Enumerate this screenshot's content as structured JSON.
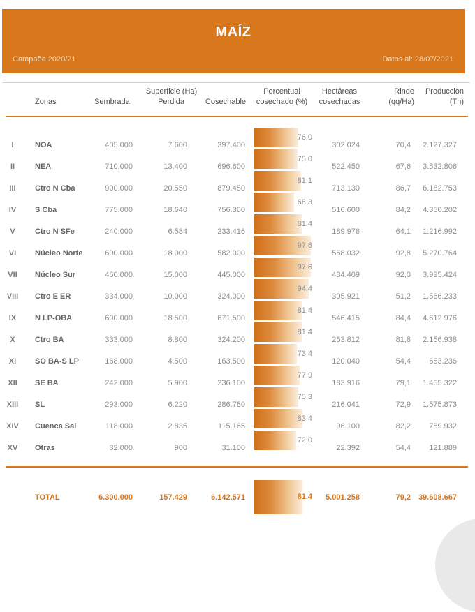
{
  "header": {
    "title": "MAÍZ",
    "campaign": "Campaña 2020/21",
    "data_as_of": "Datos al: 28/07/2021"
  },
  "columns": {
    "zonas": "Zonas",
    "sembrada": "Sembrada",
    "superficie_group": "Superficie (Ha)",
    "perdida": "Perdida",
    "cosechable": "Cosechable",
    "porcentual_l1": "Porcentual",
    "porcentual_l2": "cosechado (%)",
    "hectareas_l1": "Hectáreas",
    "hectareas_l2": "cosechadas",
    "rinde_l1": "Rinde",
    "rinde_l2": "(qq/Ha)",
    "produccion_l1": "Producción",
    "produccion_l2": "(Tn)"
  },
  "rows": [
    {
      "num": "I",
      "zone": "NOA",
      "sembrada": "405.000",
      "perdida": "7.600",
      "cosechable": "397.400",
      "pct": 76.0,
      "pct_label": "76,0",
      "hectareas": "302.024",
      "rinde": "70,4",
      "produccion": "2.127.327"
    },
    {
      "num": "II",
      "zone": "NEA",
      "sembrada": "710.000",
      "perdida": "13.400",
      "cosechable": "696.600",
      "pct": 75.0,
      "pct_label": "75,0",
      "hectareas": "522.450",
      "rinde": "67,6",
      "produccion": "3.532.806"
    },
    {
      "num": "III",
      "zone": "Ctro N Cba",
      "sembrada": "900.000",
      "perdida": "20.550",
      "cosechable": "879.450",
      "pct": 81.1,
      "pct_label": "81,1",
      "hectareas": "713.130",
      "rinde": "86,7",
      "produccion": "6.182.753"
    },
    {
      "num": "IV",
      "zone": "S Cba",
      "sembrada": "775.000",
      "perdida": "18.640",
      "cosechable": "756.360",
      "pct": 68.3,
      "pct_label": "68,3",
      "hectareas": "516.600",
      "rinde": "84,2",
      "produccion": "4.350.202"
    },
    {
      "num": "V",
      "zone": "Ctro N SFe",
      "sembrada": "240.000",
      "perdida": "6.584",
      "cosechable": "233.416",
      "pct": 81.4,
      "pct_label": "81,4",
      "hectareas": "189.976",
      "rinde": "64,1",
      "produccion": "1.216.992"
    },
    {
      "num": "VI",
      "zone": "Núcleo Norte",
      "sembrada": "600.000",
      "perdida": "18.000",
      "cosechable": "582.000",
      "pct": 97.6,
      "pct_label": "97,6",
      "hectareas": "568.032",
      "rinde": "92,8",
      "produccion": "5.270.764"
    },
    {
      "num": "VII",
      "zone": "Núcleo Sur",
      "sembrada": "460.000",
      "perdida": "15.000",
      "cosechable": "445.000",
      "pct": 97.6,
      "pct_label": "97,6",
      "hectareas": "434.409",
      "rinde": "92,0",
      "produccion": "3.995.424"
    },
    {
      "num": "VIII",
      "zone": "Ctro E ER",
      "sembrada": "334.000",
      "perdida": "10.000",
      "cosechable": "324.000",
      "pct": 94.4,
      "pct_label": "94,4",
      "hectareas": "305.921",
      "rinde": "51,2",
      "produccion": "1.566.233"
    },
    {
      "num": "IX",
      "zone": "N LP-OBA",
      "sembrada": "690.000",
      "perdida": "18.500",
      "cosechable": "671.500",
      "pct": 81.4,
      "pct_label": "81,4",
      "hectareas": "546.415",
      "rinde": "84,4",
      "produccion": "4.612.976"
    },
    {
      "num": "X",
      "zone": "Ctro BA",
      "sembrada": "333.000",
      "perdida": "8.800",
      "cosechable": "324.200",
      "pct": 81.4,
      "pct_label": "81,4",
      "hectareas": "263.812",
      "rinde": "81,8",
      "produccion": "2.156.938"
    },
    {
      "num": "XI",
      "zone": "SO BA-S LP",
      "sembrada": "168.000",
      "perdida": "4.500",
      "cosechable": "163.500",
      "pct": 73.4,
      "pct_label": "73,4",
      "hectareas": "120.040",
      "rinde": "54,4",
      "produccion": "653.236"
    },
    {
      "num": "XII",
      "zone": "SE BA",
      "sembrada": "242.000",
      "perdida": "5.900",
      "cosechable": "236.100",
      "pct": 77.9,
      "pct_label": "77,9",
      "hectareas": "183.916",
      "rinde": "79,1",
      "produccion": "1.455.322"
    },
    {
      "num": "XIII",
      "zone": "SL",
      "sembrada": "293.000",
      "perdida": "6.220",
      "cosechable": "286.780",
      "pct": 75.3,
      "pct_label": "75,3",
      "hectareas": "216.041",
      "rinde": "72,9",
      "produccion": "1.575.873"
    },
    {
      "num": "XIV",
      "zone": "Cuenca Sal",
      "sembrada": "118.000",
      "perdida": "2.835",
      "cosechable": "115.165",
      "pct": 83.4,
      "pct_label": "83,4",
      "hectareas": "96.100",
      "rinde": "82,2",
      "produccion": "789.932"
    },
    {
      "num": "XV",
      "zone": "Otras",
      "sembrada": "32.000",
      "perdida": "900",
      "cosechable": "31.100",
      "pct": 72.0,
      "pct_label": "72,0",
      "hectareas": "22.392",
      "rinde": "54,4",
      "produccion": "121.889"
    }
  ],
  "total": {
    "label": "TOTAL",
    "sembrada": "6.300.000",
    "perdida": "157.429",
    "cosechable": "6.142.571",
    "pct": 81.4,
    "pct_label": "81,4",
    "hectareas": "5.001.258",
    "rinde": "79,2",
    "produccion": "39.608.667"
  },
  "colors": {
    "accent": "#D9771C",
    "bar_gradient_start": "#D06F18",
    "bar_gradient_end": "#FAEDDE",
    "grid_line": "#D4D4D4",
    "value_text": "#8E8E8E",
    "header_text": "#4F4F4F",
    "zone_text": "#666666",
    "watermark": "#E9E9E9"
  },
  "chart_data": {
    "type": "bar",
    "title": "MAÍZ",
    "subtitle": "Campaña 2020/21 · Datos al: 28/07/2021",
    "series_label": "Porcentual cosechado (%)",
    "orientation": "horizontal",
    "xlim": [
      0,
      100
    ],
    "categories": [
      "NOA",
      "NEA",
      "Ctro N Cba",
      "S Cba",
      "Ctro N SFe",
      "Núcleo Norte",
      "Núcleo Sur",
      "Ctro E ER",
      "N LP-OBA",
      "Ctro BA",
      "SO BA-S LP",
      "SE BA",
      "SL",
      "Cuenca Sal",
      "Otras"
    ],
    "values": [
      76.0,
      75.0,
      81.1,
      68.3,
      81.4,
      97.6,
      97.6,
      94.4,
      81.4,
      81.4,
      73.4,
      77.9,
      75.3,
      83.4,
      72.0
    ],
    "total_value": 81.4,
    "table": {
      "columns": [
        "Zona",
        "Sembrada (Ha)",
        "Perdida (Ha)",
        "Cosechable (Ha)",
        "Porcentual cosechado (%)",
        "Hectáreas cosechadas",
        "Rinde (qq/Ha)",
        "Producción (Tn)"
      ],
      "rows": [
        [
          "NOA",
          405000,
          7600,
          397400,
          76.0,
          302024,
          70.4,
          2127327
        ],
        [
          "NEA",
          710000,
          13400,
          696600,
          75.0,
          522450,
          67.6,
          3532806
        ],
        [
          "Ctro N Cba",
          900000,
          20550,
          879450,
          81.1,
          713130,
          86.7,
          6182753
        ],
        [
          "S Cba",
          775000,
          18640,
          756360,
          68.3,
          516600,
          84.2,
          4350202
        ],
        [
          "Ctro N SFe",
          240000,
          6584,
          233416,
          81.4,
          189976,
          64.1,
          1216992
        ],
        [
          "Núcleo Norte",
          600000,
          18000,
          582000,
          97.6,
          568032,
          92.8,
          5270764
        ],
        [
          "Núcleo Sur",
          460000,
          15000,
          445000,
          97.6,
          434409,
          92.0,
          3995424
        ],
        [
          "Ctro E ER",
          334000,
          10000,
          324000,
          94.4,
          305921,
          51.2,
          1566233
        ],
        [
          "N LP-OBA",
          690000,
          18500,
          671500,
          81.4,
          546415,
          84.4,
          4612976
        ],
        [
          "Ctro BA",
          333000,
          8800,
          324200,
          81.4,
          263812,
          81.8,
          2156938
        ],
        [
          "SO BA-S LP",
          168000,
          4500,
          163500,
          73.4,
          120040,
          54.4,
          653236
        ],
        [
          "SE BA",
          242000,
          5900,
          236100,
          77.9,
          183916,
          79.1,
          1455322
        ],
        [
          "SL",
          293000,
          6220,
          286780,
          75.3,
          216041,
          72.9,
          1575873
        ],
        [
          "Cuenca Sal",
          118000,
          2835,
          115165,
          83.4,
          96100,
          82.2,
          789932
        ],
        [
          "Otras",
          32000,
          900,
          31100,
          72.0,
          22392,
          54.4,
          121889
        ]
      ],
      "total": [
        "TOTAL",
        6300000,
        157429,
        6142571,
        81.4,
        5001258,
        79.2,
        39608667
      ]
    }
  }
}
